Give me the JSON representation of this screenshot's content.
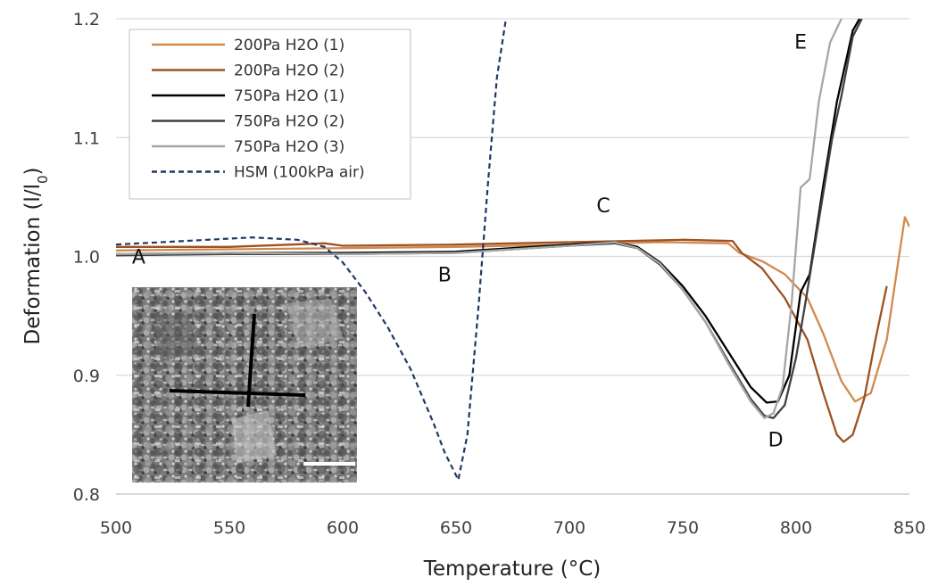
{
  "chart_data": {
    "type": "line",
    "xlabel": "Temperature (°C)",
    "ylabel": "Deformation  (l/l",
    "ylabel_sub": "0",
    "ylabel_end": ")",
    "xlim": [
      500,
      850
    ],
    "ylim": [
      0.8,
      1.2
    ],
    "xticks": [
      "500",
      "550",
      "600",
      "650",
      "700",
      "750",
      "800",
      "850"
    ],
    "yticks": [
      "0.8",
      "0.9",
      "1.0",
      "1.1",
      "1.2"
    ],
    "grid": "horizontal",
    "legend_position": "top-left",
    "series": [
      {
        "name": "200Pa H2O (1)",
        "color": "#d08a4e",
        "dash": "solid",
        "x": [
          500,
          550,
          600,
          650,
          700,
          740,
          770,
          775,
          785,
          795,
          805,
          812,
          820,
          826,
          833,
          840,
          845,
          848,
          850
        ],
        "y": [
          1.005,
          1.006,
          1.007,
          1.008,
          1.01,
          1.012,
          1.011,
          1.003,
          0.996,
          0.985,
          0.965,
          0.935,
          0.895,
          0.878,
          0.885,
          0.93,
          0.995,
          1.033,
          1.025
        ]
      },
      {
        "name": "200Pa H2O (2)",
        "color": "#9e5222",
        "dash": "solid",
        "x": [
          500,
          550,
          592,
          600,
          650,
          700,
          750,
          772,
          776,
          785,
          795,
          805,
          812,
          818,
          821,
          825,
          830,
          835,
          840
        ],
        "y": [
          1.008,
          1.008,
          1.011,
          1.009,
          1.01,
          1.012,
          1.014,
          1.013,
          1.003,
          0.99,
          0.965,
          0.93,
          0.885,
          0.85,
          0.844,
          0.85,
          0.88,
          0.93,
          0.975
        ]
      },
      {
        "name": "750Pa H2O (1)",
        "color": "#000000",
        "dash": "solid",
        "x": [
          500,
          550,
          600,
          650,
          700,
          720,
          730,
          740,
          750,
          760,
          770,
          780,
          787,
          792,
          797,
          802,
          806,
          812,
          818,
          825,
          828
        ],
        "y": [
          1.002,
          1.003,
          1.003,
          1.004,
          1.01,
          1.012,
          1.008,
          0.995,
          0.975,
          0.95,
          0.92,
          0.89,
          0.877,
          0.878,
          0.9,
          0.97,
          0.985,
          1.06,
          1.13,
          1.19,
          1.2
        ]
      },
      {
        "name": "750Pa H2O (2)",
        "color": "#404040",
        "dash": "solid",
        "x": [
          500,
          550,
          600,
          650,
          700,
          720,
          730,
          740,
          750,
          760,
          770,
          780,
          786,
          790,
          795,
          800,
          804,
          810,
          816,
          820,
          825,
          829
        ],
        "y": [
          1.001,
          1.002,
          1.002,
          1.003,
          1.009,
          1.011,
          1.007,
          0.993,
          0.972,
          0.945,
          0.912,
          0.88,
          0.866,
          0.864,
          0.875,
          0.915,
          0.96,
          1.03,
          1.1,
          1.135,
          1.185,
          1.2
        ]
      },
      {
        "name": "750Pa H2O (3)",
        "color": "#a6a6a6",
        "dash": "solid",
        "x": [
          500,
          550,
          600,
          650,
          700,
          720,
          730,
          740,
          750,
          760,
          770,
          780,
          786,
          790,
          794,
          798,
          802,
          806,
          810,
          815,
          820
        ],
        "y": [
          1.002,
          1.003,
          1.002,
          1.003,
          1.009,
          1.012,
          1.007,
          0.994,
          0.972,
          0.945,
          0.91,
          0.878,
          0.864,
          0.868,
          0.89,
          0.96,
          1.058,
          1.065,
          1.13,
          1.18,
          1.2
        ]
      },
      {
        "name": "HSM (100kPa air)",
        "color": "#1f3864",
        "dash": "dashed",
        "x": [
          500,
          530,
          560,
          580,
          592,
          600,
          610,
          620,
          630,
          640,
          645,
          651,
          655,
          660,
          664,
          668,
          672
        ],
        "y": [
          1.01,
          1.013,
          1.016,
          1.014,
          1.008,
          0.995,
          0.97,
          0.94,
          0.905,
          0.86,
          0.835,
          0.812,
          0.85,
          0.96,
          1.06,
          1.15,
          1.2
        ]
      }
    ],
    "annotations": [
      {
        "text": "A",
        "x": 510,
        "y": 0.994
      },
      {
        "text": "B",
        "x": 645,
        "y": 0.979
      },
      {
        "text": "C",
        "x": 715,
        "y": 1.037
      },
      {
        "text": "D",
        "x": 791,
        "y": 0.84
      },
      {
        "text": "E",
        "x": 802,
        "y": 1.175
      }
    ]
  },
  "inset": {
    "description_icon": "sem-micrograph-icon"
  }
}
